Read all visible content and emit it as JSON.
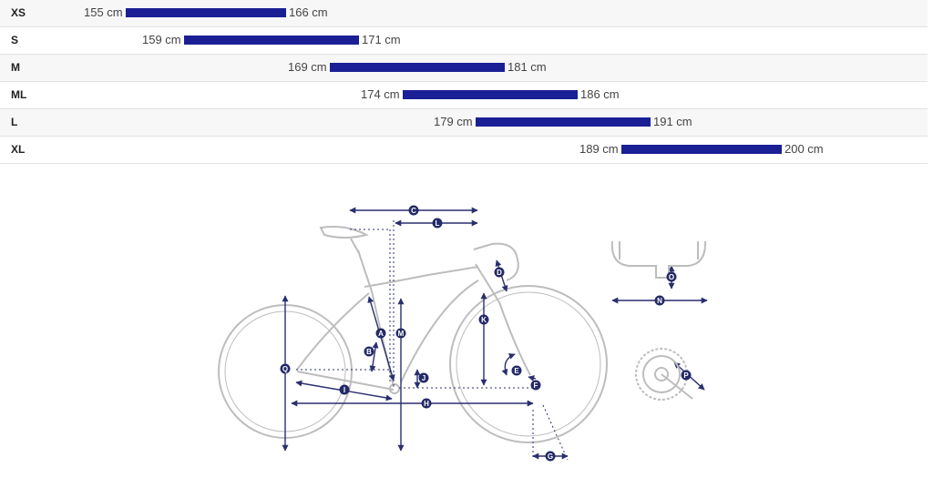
{
  "size_chart": {
    "scale": {
      "min_cm": 140,
      "max_cm": 210
    },
    "rows": [
      {
        "size": "XS",
        "min_label": "155 cm",
        "max_label": "166 cm",
        "min": 155,
        "max": 166
      },
      {
        "size": "S",
        "min_label": "159 cm",
        "max_label": "171 cm",
        "min": 159,
        "max": 171
      },
      {
        "size": "M",
        "min_label": "169 cm",
        "max_label": "181 cm",
        "min": 169,
        "max": 181
      },
      {
        "size": "ML",
        "min_label": "174 cm",
        "max_label": "186 cm",
        "min": 174,
        "max": 186
      },
      {
        "size": "L",
        "min_label": "179 cm",
        "max_label": "191 cm",
        "min": 179,
        "max": 191
      },
      {
        "size": "XL",
        "min_label": "189 cm",
        "max_label": "200 cm",
        "min": 189,
        "max": 200
      }
    ],
    "bar_color": "#1a1f96"
  },
  "geometry_labels": {
    "A": "A",
    "B": "B",
    "C": "C",
    "D": "D",
    "E": "E",
    "F": "F",
    "G": "G",
    "H": "H",
    "I": "I",
    "J": "J",
    "K": "K",
    "L": "L",
    "M": "M",
    "N": "N",
    "O": "O",
    "P": "P",
    "Q": "Q"
  },
  "colors": {
    "line": "#2a2f6e",
    "frame": "#bdbdbd",
    "label_bg": "#242a66"
  }
}
